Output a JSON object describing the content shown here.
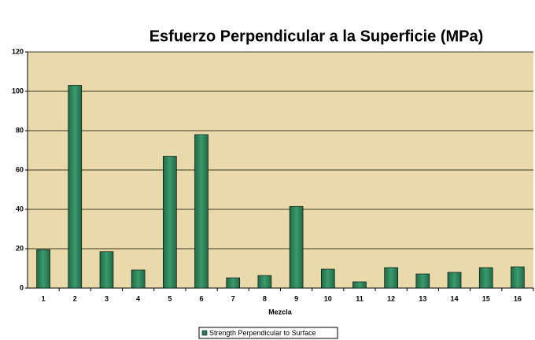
{
  "chart_data": {
    "type": "bar",
    "title": "Esfuerzo Perpendicular a la Superficie (MPa)",
    "x_label": "Mezcla",
    "categories": [
      "1",
      "2",
      "3",
      "4",
      "5",
      "6",
      "7",
      "8",
      "9",
      "10",
      "11",
      "12",
      "13",
      "14",
      "15",
      "16"
    ],
    "series": [
      {
        "name": "Strength Perpendicular to Surface",
        "color": "#2b7d58",
        "values": [
          19.5,
          103,
          18.5,
          9.2,
          67,
          78,
          5.2,
          6.4,
          41.5,
          9.6,
          3.2,
          10.4,
          7.2,
          8,
          10.4,
          10.8
        ]
      }
    ],
    "ylim": [
      0,
      120
    ],
    "yticks": [
      0,
      20,
      40,
      60,
      80,
      100,
      120
    ],
    "grid": true,
    "legend": "bottom"
  }
}
